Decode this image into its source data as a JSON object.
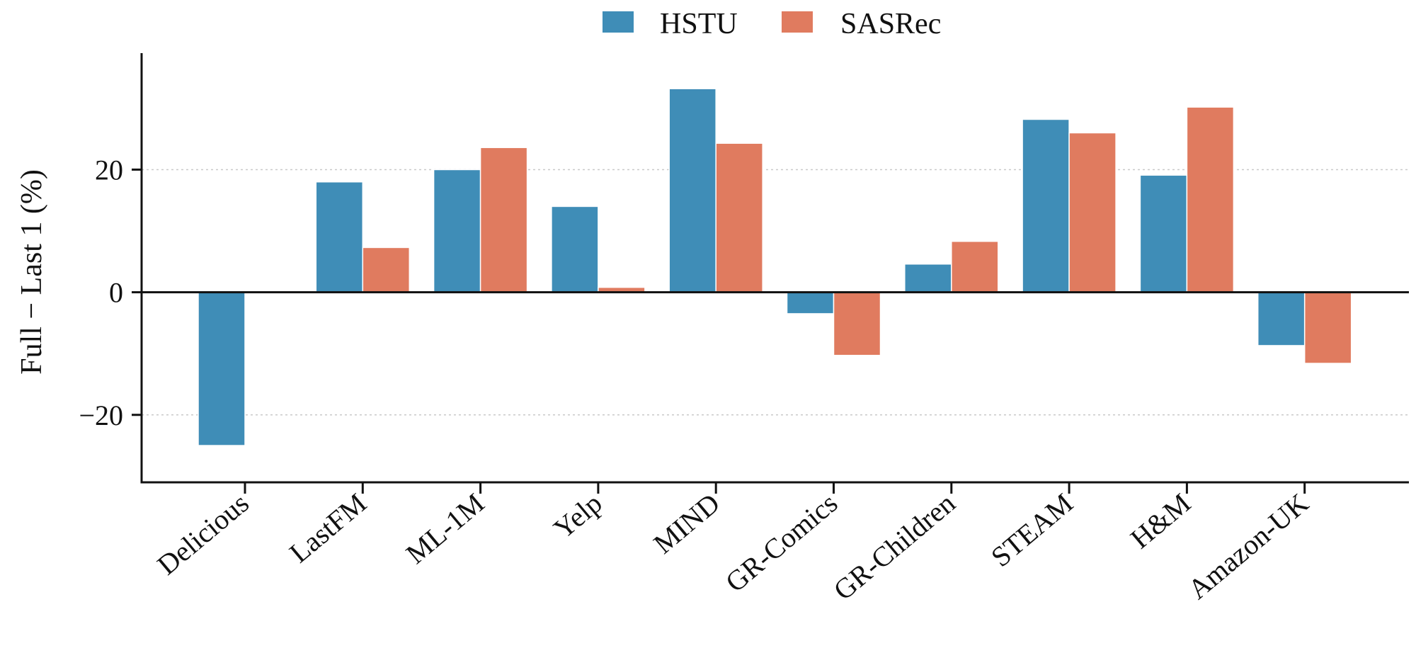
{
  "chart_data": {
    "type": "bar",
    "categories": [
      "Delicious",
      "LastFM",
      "ML-1M",
      "Yelp",
      "MIND",
      "GR-Comics",
      "GR-Children",
      "STEAM",
      "H&M",
      "Amazon-UK"
    ],
    "series": [
      {
        "name": "HSTU",
        "color": "#3f8db7",
        "values": [
          -25.0,
          18.0,
          20.0,
          14.0,
          33.2,
          -3.5,
          4.6,
          28.2,
          19.1,
          -8.7
        ]
      },
      {
        "name": "SASRec",
        "color": "#e07b5f",
        "values": [
          0.0,
          7.3,
          23.6,
          0.8,
          24.3,
          -10.3,
          8.3,
          26.0,
          30.2,
          -11.6
        ]
      }
    ],
    "title": "",
    "xlabel": "",
    "ylabel": "Full − Last 1 (%)",
    "ylim": [
      -31,
      39
    ],
    "yticks": [
      -20,
      0,
      20
    ],
    "ytick_labels": [
      "−20",
      "0",
      "20"
    ],
    "grid": "horizontal dotted",
    "legend": "top-center"
  }
}
